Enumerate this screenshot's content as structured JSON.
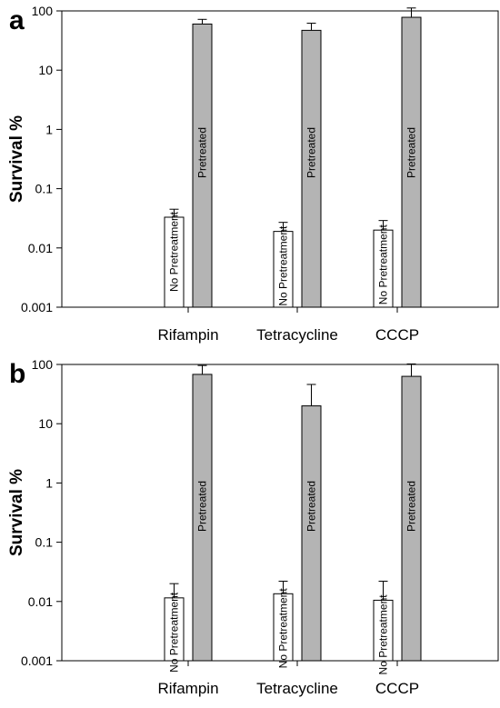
{
  "chart_data": [
    {
      "type": "bar",
      "panel_label": "a",
      "ylabel": "Survival %",
      "yscale": "log",
      "ylim": [
        0.001,
        100
      ],
      "yticks": [
        "0.001",
        "0.01",
        "0.1",
        "1",
        "10",
        "100"
      ],
      "ytick_values": [
        0.001,
        0.01,
        0.1,
        1,
        10,
        100
      ],
      "categories": [
        "Rifampin",
        "Tetracycline",
        "CCCP"
      ],
      "series": [
        {
          "name": "No Pretreatment",
          "color": "#ffffff",
          "values": [
            0.033,
            0.019,
            0.02
          ],
          "errors_upper": [
            0.045,
            0.027,
            0.029
          ]
        },
        {
          "name": "Pretreated",
          "color": "#b4b4b4",
          "values": [
            60,
            47,
            78
          ],
          "errors_upper": [
            72,
            62,
            112
          ]
        }
      ]
    },
    {
      "type": "bar",
      "panel_label": "b",
      "ylabel": "Survival %",
      "yscale": "log",
      "ylim": [
        0.001,
        100
      ],
      "yticks": [
        "0.001",
        "0.01",
        "0.1",
        "1",
        "10",
        "100"
      ],
      "ytick_values": [
        0.001,
        0.01,
        0.1,
        1,
        10,
        100
      ],
      "categories": [
        "Rifampin",
        "Tetracycline",
        "CCCP"
      ],
      "series": [
        {
          "name": "No Pretreatment",
          "color": "#ffffff",
          "values": [
            0.0115,
            0.0135,
            0.0105
          ],
          "errors_upper": [
            0.02,
            0.022,
            0.022
          ]
        },
        {
          "name": "Pretreated",
          "color": "#b4b4b4",
          "values": [
            68,
            20,
            63
          ],
          "errors_upper": [
            96,
            46,
            102
          ]
        }
      ]
    }
  ]
}
